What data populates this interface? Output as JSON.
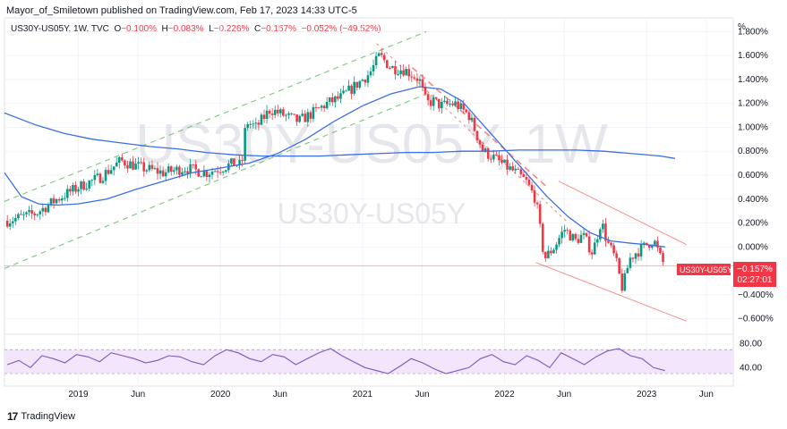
{
  "header": {
    "publisher_line": "Mayor_of_Smiletown published on TradingView.com, Feb 17, 2023 14:33 UTC-5"
  },
  "legend": {
    "symbol": "US30Y-US05Y, 1W, TVC",
    "o_label": "O",
    "o_value": "−0.100%",
    "h_label": "H",
    "h_value": "−0.083%",
    "l_label": "L",
    "l_value": "−0.226%",
    "c_label": "C",
    "c_value": "−0.157%",
    "change": "−0.052% (−49.52%)"
  },
  "watermark": {
    "big": "US30Y-US05Y, 1W",
    "small": "US30Y-US05Y"
  },
  "price_tag": {
    "symbol": "US30Y-US05Y",
    "value": "−0.157%",
    "countdown": "02:27:01",
    "color": "#f23645"
  },
  "footer": {
    "logo": "17",
    "brand": "TradingView"
  },
  "colors": {
    "up": "#089981",
    "down": "#f23645",
    "ma": "#3a6ee8",
    "rsi": "#7e57c2",
    "rsi_band": "#f3e5fb"
  },
  "chart_data": [
    {
      "type": "candlestick",
      "interval": "1W",
      "unit_label": "%",
      "y_ticks": [
        "1.800%",
        "1.600%",
        "1.400%",
        "1.200%",
        "1.000%",
        "0.800%",
        "0.600%",
        "0.400%",
        "0.200%",
        "0.000%",
        "−0.400%",
        "−0.600%"
      ],
      "y_tick_values": [
        1.8,
        1.6,
        1.4,
        1.2,
        1.0,
        0.8,
        0.6,
        0.4,
        0.2,
        0.0,
        -0.4,
        -0.6
      ],
      "ylim": [
        -0.7,
        1.9
      ],
      "x_ticks": [
        "2019",
        "Jun",
        "2020",
        "Jun",
        "2021",
        "Jun",
        "2022",
        "Jun",
        "2023",
        "Jun"
      ],
      "x_tick_values": [
        2019.0,
        2019.42,
        2020.0,
        2020.42,
        2021.0,
        2021.42,
        2022.0,
        2022.42,
        2023.0,
        2023.42
      ],
      "xlim": [
        2018.48,
        2023.61
      ],
      "price_path": [
        [
          2018.5,
          0.22
        ],
        [
          2018.7,
          0.28
        ],
        [
          2018.85,
          0.4
        ],
        [
          2019.0,
          0.5
        ],
        [
          2019.15,
          0.58
        ],
        [
          2019.3,
          0.72
        ],
        [
          2019.45,
          0.66
        ],
        [
          2019.6,
          0.62
        ],
        [
          2019.75,
          0.66
        ],
        [
          2019.9,
          0.62
        ],
        [
          2020.0,
          0.66
        ],
        [
          2020.1,
          0.7
        ],
        [
          2020.15,
          0.68
        ],
        [
          2020.18,
          1.05
        ],
        [
          2020.25,
          1.0
        ],
        [
          2020.35,
          1.15
        ],
        [
          2020.45,
          1.1
        ],
        [
          2020.55,
          1.05
        ],
        [
          2020.65,
          1.12
        ],
        [
          2020.75,
          1.2
        ],
        [
          2020.85,
          1.25
        ],
        [
          2020.95,
          1.35
        ],
        [
          2021.05,
          1.45
        ],
        [
          2021.12,
          1.6
        ],
        [
          2021.2,
          1.5
        ],
        [
          2021.3,
          1.48
        ],
        [
          2021.4,
          1.4
        ],
        [
          2021.45,
          1.2
        ],
        [
          2021.5,
          1.22
        ],
        [
          2021.55,
          1.18
        ],
        [
          2021.65,
          1.2
        ],
        [
          2021.75,
          1.1
        ],
        [
          2021.85,
          0.8
        ],
        [
          2021.92,
          0.75
        ],
        [
          2022.0,
          0.68
        ],
        [
          2022.08,
          0.62
        ],
        [
          2022.15,
          0.55
        ],
        [
          2022.22,
          0.4
        ],
        [
          2022.28,
          -0.1
        ],
        [
          2022.35,
          0.0
        ],
        [
          2022.42,
          0.15
        ],
        [
          2022.5,
          0.05
        ],
        [
          2022.55,
          0.1
        ],
        [
          2022.62,
          -0.05
        ],
        [
          2022.68,
          0.22
        ],
        [
          2022.72,
          0.05
        ],
        [
          2022.78,
          -0.1
        ],
        [
          2022.83,
          -0.35
        ],
        [
          2022.88,
          -0.1
        ],
        [
          2022.92,
          -0.05
        ],
        [
          2022.98,
          0.0
        ],
        [
          2023.0,
          0.02
        ],
        [
          2023.05,
          0.06
        ],
        [
          2023.1,
          -0.1
        ],
        [
          2023.13,
          -0.157
        ]
      ],
      "moving_average_fast": [
        [
          2018.48,
          0.62
        ],
        [
          2018.6,
          0.42
        ],
        [
          2018.72,
          0.36
        ],
        [
          2018.85,
          0.35
        ],
        [
          2019.0,
          0.36
        ],
        [
          2019.2,
          0.4
        ],
        [
          2019.4,
          0.48
        ],
        [
          2019.6,
          0.55
        ],
        [
          2019.8,
          0.62
        ],
        [
          2020.0,
          0.66
        ],
        [
          2020.2,
          0.7
        ],
        [
          2020.4,
          0.78
        ],
        [
          2020.6,
          0.9
        ],
        [
          2020.8,
          1.05
        ],
        [
          2021.0,
          1.18
        ],
        [
          2021.2,
          1.28
        ],
        [
          2021.4,
          1.34
        ],
        [
          2021.55,
          1.32
        ],
        [
          2021.7,
          1.22
        ],
        [
          2021.85,
          1.02
        ],
        [
          2022.0,
          0.82
        ],
        [
          2022.15,
          0.62
        ],
        [
          2022.3,
          0.42
        ],
        [
          2022.45,
          0.25
        ],
        [
          2022.6,
          0.12
        ],
        [
          2022.75,
          0.05
        ],
        [
          2022.9,
          0.03
        ],
        [
          2023.0,
          0.02
        ],
        [
          2023.13,
          0.0
        ]
      ],
      "moving_average_slow": [
        [
          2018.48,
          1.12
        ],
        [
          2018.7,
          1.02
        ],
        [
          2018.9,
          0.95
        ],
        [
          2019.1,
          0.9
        ],
        [
          2019.3,
          0.87
        ],
        [
          2019.5,
          0.84
        ],
        [
          2019.7,
          0.82
        ],
        [
          2019.9,
          0.79
        ],
        [
          2020.1,
          0.77
        ],
        [
          2020.3,
          0.76
        ],
        [
          2020.5,
          0.76
        ],
        [
          2020.7,
          0.76
        ],
        [
          2020.9,
          0.77
        ],
        [
          2021.1,
          0.78
        ],
        [
          2021.3,
          0.79
        ],
        [
          2021.5,
          0.79
        ],
        [
          2021.7,
          0.8
        ],
        [
          2021.9,
          0.8
        ],
        [
          2022.1,
          0.81
        ],
        [
          2022.3,
          0.81
        ],
        [
          2022.5,
          0.81
        ],
        [
          2022.7,
          0.8
        ],
        [
          2022.9,
          0.78
        ],
        [
          2023.1,
          0.76
        ],
        [
          2023.2,
          0.74
        ]
      ],
      "channel_up": [
        [
          [
            2018.48,
            0.38
          ],
          [
            2021.45,
            1.8
          ]
        ],
        [
          [
            2018.48,
            -0.18
          ],
          [
            2021.45,
            1.28
          ]
        ]
      ],
      "channel_down_dashed": [
        [
          [
            2021.35,
            1.5
          ],
          [
            2022.3,
            0.5
          ]
        ],
        [
          [
            2021.1,
            1.7
          ],
          [
            2022.45,
            0.2
          ]
        ]
      ],
      "channel_down_solid": [
        [
          [
            2022.38,
            0.55
          ],
          [
            2023.28,
            0.02
          ]
        ],
        [
          [
            2022.22,
            -0.13
          ],
          [
            2023.28,
            -0.62
          ]
        ]
      ],
      "horizontal_line": -0.157
    },
    {
      "type": "line",
      "indicator": "RSI",
      "y_ticks": [
        "80.00",
        "40.00"
      ],
      "y_tick_values": [
        80,
        40
      ],
      "ylim": [
        15,
        90
      ],
      "band": [
        30,
        70
      ],
      "values": [
        45,
        52,
        40,
        60,
        55,
        48,
        62,
        58,
        50,
        65,
        60,
        55,
        48,
        52,
        60,
        58,
        50,
        45,
        60,
        70,
        65,
        55,
        50,
        62,
        58,
        45,
        55,
        65,
        72,
        60,
        50,
        40,
        35,
        30,
        42,
        55,
        48,
        38,
        30,
        35,
        40,
        55,
        62,
        50,
        45,
        60,
        52,
        40,
        65,
        55,
        45,
        58,
        68,
        72,
        60,
        55,
        40,
        35
      ]
    }
  ]
}
